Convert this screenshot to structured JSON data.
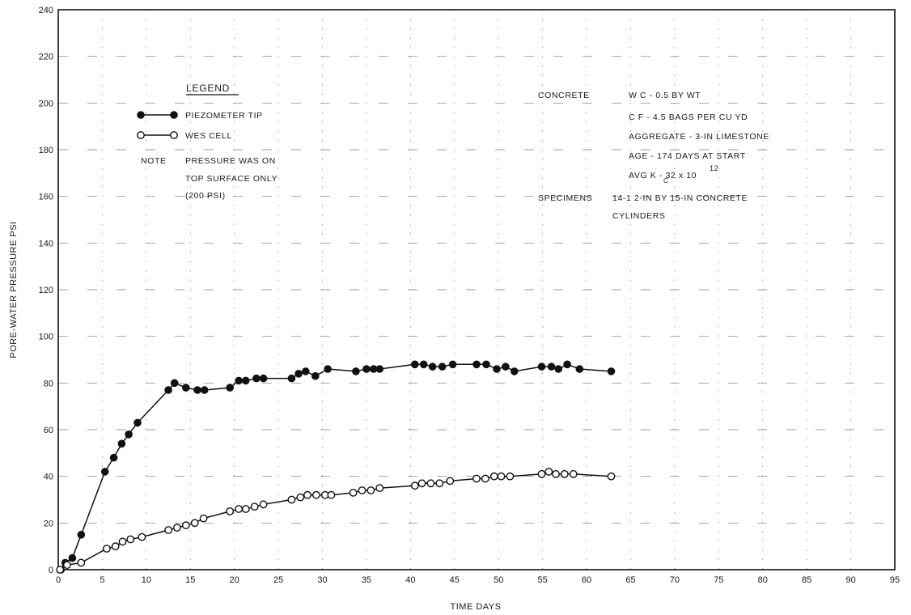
{
  "chart_data": {
    "type": "line",
    "title": "",
    "xlabel": "TIME DAYS",
    "ylabel": "PORE-WATER PRESSURE PSI",
    "xlim": [
      0,
      95
    ],
    "ylim": [
      0,
      240
    ],
    "grid": true,
    "x_ticks": [
      "0",
      "5",
      "10",
      "15",
      "20",
      "25",
      "30",
      "35",
      "40",
      "45",
      "50",
      "55",
      "60",
      "65",
      "70",
      "75",
      "80",
      "85",
      "90",
      "95"
    ],
    "y_ticks": [
      "0",
      "20",
      "40",
      "60",
      "80",
      "100",
      "120",
      "140",
      "160",
      "180",
      "200",
      "220",
      "240"
    ],
    "legend_title": "LEGEND",
    "legend_position": "upper-left",
    "series": [
      {
        "name": "PIEZOMETER TIP",
        "marker": "filled-circle",
        "color": "#111111",
        "points": [
          [
            0.3,
            0
          ],
          [
            0.8,
            3
          ],
          [
            1.6,
            5
          ],
          [
            2.6,
            15
          ],
          [
            5.3,
            42
          ],
          [
            6.3,
            48
          ],
          [
            7.2,
            54
          ],
          [
            8.0,
            58
          ],
          [
            9.0,
            63
          ],
          [
            12.5,
            77
          ],
          [
            13.2,
            80
          ],
          [
            14.5,
            78
          ],
          [
            15.8,
            77
          ],
          [
            16.6,
            77
          ],
          [
            19.5,
            78
          ],
          [
            20.5,
            81
          ],
          [
            21.3,
            81
          ],
          [
            22.5,
            82
          ],
          [
            23.3,
            82
          ],
          [
            26.5,
            82
          ],
          [
            27.3,
            84
          ],
          [
            28.1,
            85
          ],
          [
            29.2,
            83
          ],
          [
            30.6,
            86
          ],
          [
            33.8,
            85
          ],
          [
            35.0,
            86
          ],
          [
            35.8,
            86
          ],
          [
            36.5,
            86
          ],
          [
            40.5,
            88
          ],
          [
            41.5,
            88
          ],
          [
            42.5,
            87
          ],
          [
            43.6,
            87
          ],
          [
            44.8,
            88
          ],
          [
            47.5,
            88
          ],
          [
            48.6,
            88
          ],
          [
            49.8,
            86
          ],
          [
            50.8,
            87
          ],
          [
            51.8,
            85
          ],
          [
            54.9,
            87
          ],
          [
            56.0,
            87
          ],
          [
            56.8,
            86
          ],
          [
            57.8,
            88
          ],
          [
            59.2,
            86
          ],
          [
            62.8,
            85
          ]
        ]
      },
      {
        "name": "WES CELL",
        "marker": "open-circle",
        "color": "#111111",
        "points": [
          [
            0.2,
            0
          ],
          [
            1.0,
            2
          ],
          [
            2.6,
            3
          ],
          [
            5.5,
            9
          ],
          [
            6.5,
            10
          ],
          [
            7.3,
            12
          ],
          [
            8.2,
            13
          ],
          [
            9.5,
            14
          ],
          [
            12.5,
            17
          ],
          [
            13.5,
            18
          ],
          [
            14.5,
            19
          ],
          [
            15.5,
            20
          ],
          [
            16.5,
            22
          ],
          [
            19.5,
            25
          ],
          [
            20.5,
            26
          ],
          [
            21.3,
            26
          ],
          [
            22.3,
            27
          ],
          [
            23.3,
            28
          ],
          [
            26.5,
            30
          ],
          [
            27.5,
            31
          ],
          [
            28.3,
            32
          ],
          [
            29.3,
            32
          ],
          [
            30.3,
            32
          ],
          [
            31.0,
            32
          ],
          [
            33.5,
            33
          ],
          [
            34.5,
            34
          ],
          [
            35.5,
            34
          ],
          [
            36.5,
            35
          ],
          [
            40.5,
            36
          ],
          [
            41.3,
            37
          ],
          [
            42.3,
            37
          ],
          [
            43.3,
            37
          ],
          [
            44.5,
            38
          ],
          [
            47.5,
            39
          ],
          [
            48.5,
            39
          ],
          [
            49.5,
            40
          ],
          [
            50.3,
            40
          ],
          [
            51.3,
            40
          ],
          [
            54.9,
            41
          ],
          [
            55.7,
            42
          ],
          [
            56.5,
            41
          ],
          [
            57.5,
            41
          ],
          [
            58.5,
            41
          ],
          [
            62.8,
            40
          ]
        ]
      }
    ],
    "annotations": {
      "note_label": "NOTE",
      "note_lines": [
        "PRESSURE WAS ON",
        "TOP SURFACE ONLY",
        "(200 PSI)"
      ],
      "concrete_label": "CONCRETE",
      "concrete_lines": [
        "W C - 0.5 BY WT",
        "C F - 4.5 BAGS PER CU YD",
        "AGGREGATE - 3-IN LIMESTONE",
        "AGE - 174 DAYS AT START",
        "AVG K - 32 x 10"
      ],
      "kc_subscript": "C",
      "kc_exponent": "12",
      "specimens_label": "SPECIMENS",
      "specimens_lines": [
        "14-1 2-IN BY 15-IN CONCRETE",
        "CYLINDERS"
      ]
    }
  }
}
